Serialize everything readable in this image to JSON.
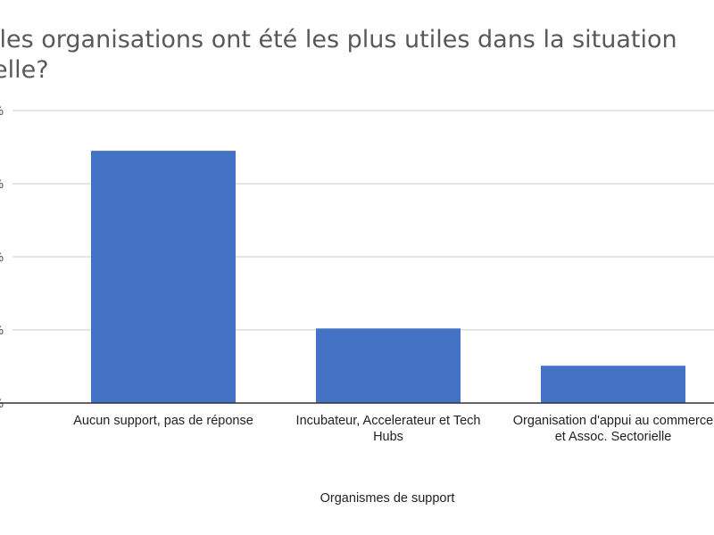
{
  "chart_data": {
    "type": "bar",
    "title": "lles organisations ont été les plus utiles dans la situation\nelle?",
    "xlabel": "Organismes de support",
    "ylabel": "",
    "categories": [
      "Aucun support, pas de réponse",
      "Incubateur, Accelerateur et Tech Hubs",
      "Organisation d'appui au commerce et Assoc. Sectorielle"
    ],
    "values": [
      34.5,
      10.2,
      5.1
    ],
    "ylim": [
      0,
      40
    ],
    "y_tick_labels": [
      "%",
      "%",
      "%",
      "%",
      "%"
    ],
    "grid": true,
    "legend": "none",
    "bar_color": "#4472c4"
  }
}
